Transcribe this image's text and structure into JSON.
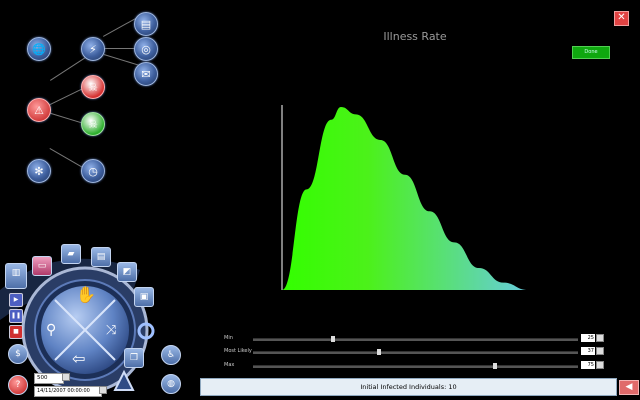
{
  "header": {
    "title": "Illness Rate"
  },
  "buttons": {
    "done_label": "Done",
    "close_glyph": "✕",
    "back_glyph": "◀"
  },
  "network": {
    "icons": [
      "globe-icon",
      "wand-icon",
      "save-icon",
      "film-icon",
      "mail-icon",
      "warning-icon",
      "skull-red-icon",
      "skull-green-icon",
      "snowflake-icon",
      "clock-icon"
    ]
  },
  "sliders": [
    {
      "label": "Min",
      "value": "25"
    },
    {
      "label": "Most Likely",
      "value": "37"
    },
    {
      "label": "Max",
      "value": "75"
    }
  ],
  "status": {
    "text": "Initial Infected Individuals: 10"
  },
  "controls": {
    "count_value": "500",
    "date_value": "14/11/2007 00:00:00"
  },
  "chart_data": {
    "type": "area",
    "title": "Illness Rate",
    "xlabel": "",
    "ylabel": "",
    "x": [
      25,
      30,
      35,
      37,
      40,
      45,
      50,
      55,
      60,
      65,
      70,
      75
    ],
    "values": [
      0,
      0.55,
      0.93,
      1.0,
      0.96,
      0.82,
      0.63,
      0.43,
      0.26,
      0.12,
      0.04,
      0
    ],
    "xlim": [
      25,
      75
    ],
    "colors": {
      "left": "#33ff00",
      "right": "#66ccdd"
    }
  },
  "colors": {
    "background": "#000000",
    "done": "#0fa80f",
    "close": "#e14444"
  }
}
